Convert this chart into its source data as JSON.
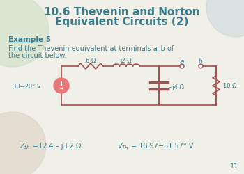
{
  "title_line1": "10.6 Thevenin and Norton",
  "title_line2": "Equivalent Circuits (2)",
  "title_color": "#3a7a8a",
  "bg_color": "#f0f0e8",
  "example_label": "Example 5",
  "description_line1": "Find the Thevenin equivalent at terminals a–b of",
  "description_line2": "the circuit below.",
  "text_color": "#3a7a8a",
  "zth_val": "=12.4 – j3.2 Ω",
  "vth_val": "= 18.97−51.57° V",
  "page_num": "11",
  "resistor_6": "6 Ω",
  "inductor_j2": "j2 Ω",
  "capacitor_j4": "–j4 Ω",
  "resistor_10": "10 Ω",
  "source_label": "30−20° V",
  "terminal_a": "a",
  "terminal_b": "b",
  "circle_colors": [
    "#d4e8c8",
    "#c8d4e8",
    "#e8d4c8"
  ],
  "source_color": "#e87878",
  "wire_color": "#a05050",
  "component_color": "#a05050",
  "bg_circle_color_tl": "#c8dcc0",
  "bg_circle_color_bl": "#d8c8b8",
  "bg_circle_color_tr": "#c0ccd8"
}
